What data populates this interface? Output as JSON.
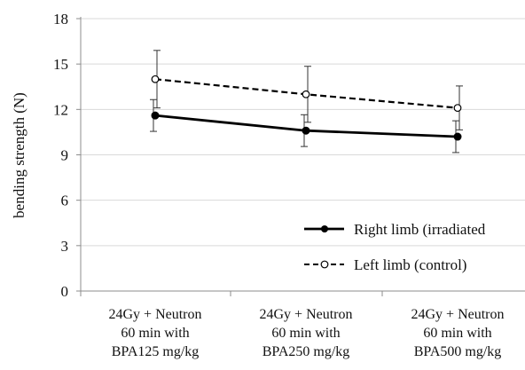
{
  "chart_data": {
    "type": "line",
    "title": "",
    "xlabel": "",
    "ylabel": "bending strength (N)",
    "ylim": [
      0,
      18
    ],
    "yticks": [
      0,
      3,
      6,
      9,
      12,
      15,
      18
    ],
    "grid": true,
    "legend_position": "bottom-right",
    "categories": [
      [
        "24Gy + Neutron",
        "60 min with",
        "BPA125 mg/kg"
      ],
      [
        "24Gy + Neutron",
        "60 min with",
        "BPA250 mg/kg"
      ],
      [
        "24Gy + Neutron",
        "60 min with",
        "BPA500 mg/kg"
      ]
    ],
    "series": [
      {
        "name": "Right limb (irradiated",
        "values": [
          11.6,
          10.6,
          10.2
        ],
        "errors": [
          1.05,
          1.05,
          1.05
        ],
        "style": "solid",
        "marker": "filled-circle",
        "color": "#000000"
      },
      {
        "name": "Left limb (control)",
        "values": [
          14.0,
          13.0,
          12.1
        ],
        "errors": [
          1.9,
          1.85,
          1.45
        ],
        "style": "dashed",
        "marker": "open-circle",
        "color": "#000000"
      }
    ]
  }
}
